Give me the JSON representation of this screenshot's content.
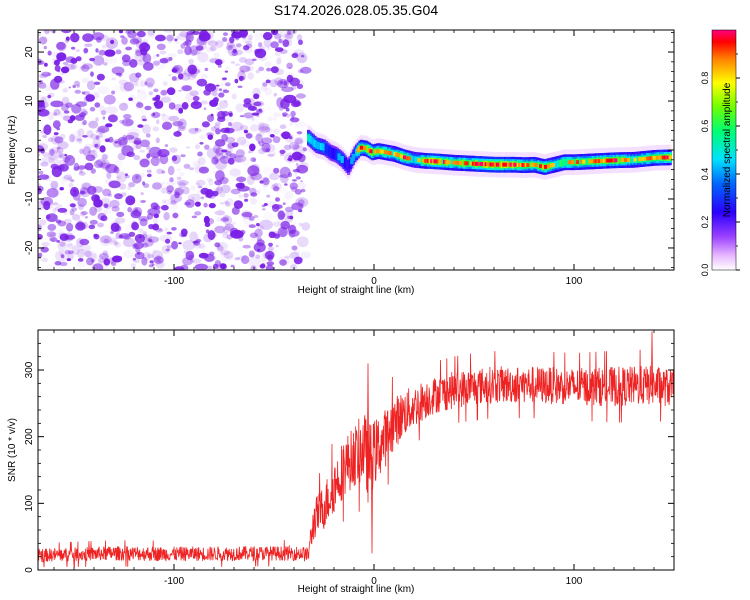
{
  "figure": {
    "title": "S174.2026.028.05.35.G04"
  },
  "colors": {
    "noise": "#7a1fe6",
    "snr_line": "#ee2222",
    "axis": "#000000",
    "background": "#ffffff"
  },
  "chart_data": [
    {
      "id": "spectrogram",
      "type": "heatmap",
      "xlabel": "Height of straight line (km)",
      "ylabel": "Frequency (Hz)",
      "xlim": [
        -168,
        150
      ],
      "ylim": [
        -24.5,
        24.5
      ],
      "xticks": [
        -100,
        0,
        100
      ],
      "yticks": [
        -20,
        -10,
        0,
        10,
        20
      ],
      "colorbar": {
        "label": "Normalized spectral amplitude",
        "range": [
          0,
          1
        ],
        "ticks": [
          "0.0",
          "0.2",
          "0.4",
          "0.6",
          "0.8"
        ],
        "tick_values": [
          0.0,
          0.2,
          0.4,
          0.6,
          0.8
        ]
      },
      "noise_region_x": [
        -168,
        -34
      ],
      "signal_trace": {
        "x": [
          -33,
          -29,
          -25,
          -22,
          -19,
          -16,
          -13,
          -10,
          -7,
          -4,
          -1,
          2,
          6,
          10,
          15,
          20,
          25,
          30,
          40,
          50,
          60,
          70,
          75,
          80,
          85,
          90,
          95,
          100,
          110,
          120,
          130,
          140,
          148
        ],
        "freq": [
          2.5,
          1.0,
          0.5,
          -0.5,
          -1.0,
          -2.0,
          -3.5,
          -1.0,
          0.5,
          0.3,
          -0.5,
          -0.2,
          -0.5,
          -0.8,
          -1.5,
          -2.0,
          -2.2,
          -2.3,
          -2.6,
          -2.8,
          -3.0,
          -3.0,
          -3.1,
          -3.0,
          -3.5,
          -3.0,
          -2.5,
          -2.5,
          -2.3,
          -2.1,
          -2.0,
          -1.6,
          -1.5
        ],
        "amp": [
          0.7,
          0.55,
          0.6,
          0.45,
          0.5,
          0.55,
          0.4,
          0.6,
          0.9,
          0.85,
          0.9,
          0.75,
          0.85,
          0.7,
          0.9,
          0.65,
          0.85,
          0.95,
          0.8,
          0.9,
          0.95,
          0.9,
          0.85,
          0.75,
          0.9,
          0.7,
          0.8,
          0.85,
          0.8,
          0.9,
          0.7,
          0.85,
          0.9
        ]
      }
    },
    {
      "id": "snr",
      "type": "line",
      "xlabel": "Height of straight line (km)",
      "ylabel": "SNR (10 * v/v)",
      "xlim": [
        -168,
        150
      ],
      "ylim": [
        0,
        360
      ],
      "xticks": [
        -100,
        0,
        100
      ],
      "yticks": [
        0,
        100,
        200,
        300
      ],
      "series_envelope": {
        "x": [
          -168,
          -130,
          -100,
          -60,
          -36,
          -33,
          -30,
          -25,
          -20,
          -15,
          -10,
          -5,
          -3,
          0,
          5,
          10,
          15,
          20,
          25,
          30,
          40,
          50,
          60,
          80,
          100,
          120,
          140,
          150
        ],
        "mean": [
          22,
          25,
          24,
          25,
          25,
          22,
          75,
          95,
          125,
          155,
          170,
          185,
          160,
          175,
          195,
          220,
          235,
          245,
          255,
          262,
          270,
          275,
          278,
          278,
          275,
          275,
          277,
          272
        ],
        "spread": [
          10,
          11,
          11,
          11,
          11,
          12,
          30,
          35,
          40,
          45,
          45,
          55,
          60,
          50,
          45,
          40,
          35,
          32,
          30,
          28,
          28,
          28,
          28,
          28,
          28,
          30,
          30,
          28
        ]
      },
      "notable_points": [
        {
          "x": -3,
          "y": 310
        },
        {
          "x": -1,
          "y": 25
        },
        {
          "x": 139,
          "y": 358
        }
      ]
    }
  ]
}
